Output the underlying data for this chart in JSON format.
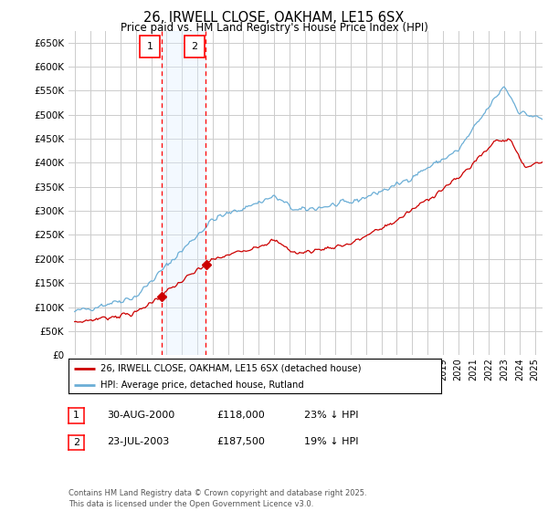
{
  "title": "26, IRWELL CLOSE, OAKHAM, LE15 6SX",
  "subtitle": "Price paid vs. HM Land Registry's House Price Index (HPI)",
  "legend_line1": "26, IRWELL CLOSE, OAKHAM, LE15 6SX (detached house)",
  "legend_line2": "HPI: Average price, detached house, Rutland",
  "footer": "Contains HM Land Registry data © Crown copyright and database right 2025.\nThis data is licensed under the Open Government Licence v3.0.",
  "transactions": [
    {
      "id": 1,
      "date": "30-AUG-2000",
      "price": 118000,
      "hpi_pct": "23% ↓ HPI",
      "year": 2000.67
    },
    {
      "id": 2,
      "date": "23-JUL-2003",
      "price": 187500,
      "hpi_pct": "19% ↓ HPI",
      "year": 2003.55
    }
  ],
  "ylim": [
    0,
    675000
  ],
  "yticks": [
    0,
    50000,
    100000,
    150000,
    200000,
    250000,
    300000,
    350000,
    400000,
    450000,
    500000,
    550000,
    600000,
    650000
  ],
  "hpi_color": "#6baed6",
  "price_color": "#cc0000",
  "background_color": "#ffffff",
  "grid_color": "#cccccc",
  "annotation_fill": "#ddeeff",
  "annotation_alpha": 0.35
}
